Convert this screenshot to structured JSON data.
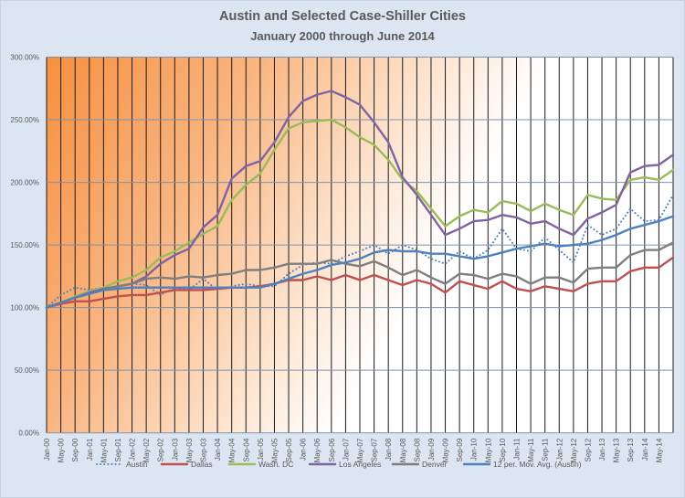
{
  "chart_data": {
    "type": "line",
    "title": "Austin and Selected Case-Shiller Cities",
    "subtitle": "January 2000 through June 2014",
    "xlabel": "",
    "ylabel": "",
    "ylim": [
      0,
      300
    ],
    "y_ticks": [
      "0.00%",
      "50.00%",
      "100.00%",
      "150.00%",
      "200.00%",
      "250.00%",
      "300.00%"
    ],
    "x_ticks": [
      "Jan-00",
      "May-00",
      "Sep-00",
      "Jan-01",
      "May-01",
      "Sep-01",
      "Jan-02",
      "May-02",
      "Sep-02",
      "Jan-03",
      "May-03",
      "Sep-03",
      "Jan-04",
      "May-04",
      "Sep-04",
      "Jan-05",
      "May-05",
      "Sep-05",
      "Jan-06",
      "May-06",
      "Sep-06",
      "Jan-07",
      "May-07",
      "Sep-07",
      "Jan-08",
      "May-08",
      "Sep-08",
      "Jan-09",
      "May-09",
      "Sep-09",
      "Jan-10",
      "May-10",
      "Sep-10",
      "Jan-11",
      "May-11",
      "Sep-11",
      "Jan-12",
      "May-12",
      "Sep-12",
      "Jan-13",
      "May-13",
      "Sep-13",
      "Jan-14",
      "May-14"
    ],
    "grid": "horizontal and vertical",
    "legend_position": "bottom",
    "background": {
      "plot_gradient_from": "#f79040",
      "plot_gradient_to": "#ffffff",
      "chart": "#dce6f2"
    },
    "series": [
      {
        "name": "Austin",
        "color": "#4f81bd",
        "style": "dotted",
        "values": [
          100,
          110,
          116,
          114,
          116,
          116,
          119,
          118,
          110,
          116,
          114,
          123,
          114,
          117,
          119,
          117,
          117,
          127,
          134,
          136,
          135,
          141,
          145,
          150,
          143,
          150,
          146,
          139,
          135,
          145,
          139,
          146,
          163,
          147,
          145,
          156,
          146,
          136,
          166,
          158,
          163,
          179,
          169,
          170,
          190
        ]
      },
      {
        "name": "Dallas",
        "color": "#c0504d",
        "style": "solid",
        "values": [
          100,
          103,
          105,
          105,
          107,
          109,
          110,
          110,
          112,
          114,
          114,
          114,
          115,
          116,
          116,
          117,
          119,
          122,
          122,
          125,
          122,
          126,
          122,
          126,
          122,
          118,
          122,
          119,
          112,
          121,
          118,
          115,
          121,
          115,
          113,
          117,
          115,
          113,
          119,
          121,
          121,
          129,
          132,
          132,
          140
        ]
      },
      {
        "name": "Wash. DC",
        "color": "#9bbb59",
        "style": "solid",
        "values": [
          100,
          104,
          109,
          113,
          116,
          121,
          124,
          130,
          140,
          145,
          152,
          159,
          165,
          186,
          198,
          207,
          226,
          243,
          248,
          249,
          250,
          244,
          236,
          230,
          218,
          202,
          193,
          179,
          165,
          173,
          178,
          176,
          185,
          183,
          177,
          183,
          178,
          174,
          190,
          187,
          186,
          202,
          204,
          202,
          210
        ]
      },
      {
        "name": "Los Angeles",
        "color": "#8064a2",
        "style": "solid",
        "values": [
          100,
          104,
          108,
          112,
          115,
          117,
          119,
          125,
          135,
          142,
          147,
          164,
          174,
          203,
          213,
          217,
          232,
          252,
          265,
          270,
          273,
          268,
          262,
          248,
          232,
          204,
          190,
          174,
          158,
          163,
          169,
          170,
          174,
          172,
          167,
          169,
          163,
          158,
          171,
          176,
          182,
          208,
          213,
          214,
          222
        ]
      },
      {
        "name": "Denver",
        "color": "#7f7f7f",
        "style": "solid",
        "values": [
          100,
          104,
          108,
          111,
          114,
          117,
          119,
          123,
          124,
          123,
          125,
          124,
          126,
          127,
          130,
          130,
          132,
          135,
          135,
          135,
          138,
          135,
          133,
          137,
          132,
          126,
          130,
          124,
          119,
          127,
          126,
          123,
          127,
          125,
          119,
          124,
          124,
          120,
          131,
          132,
          132,
          142,
          146,
          146,
          152
        ]
      },
      {
        "name": "12 per. Mov. Avg. (Austin)",
        "color": "#4f81bd",
        "style": "solid",
        "values": [
          100,
          104,
          108,
          111,
          114,
          115,
          116,
          116,
          116,
          116,
          116,
          116,
          116,
          116,
          116,
          116,
          119,
          123,
          127,
          130,
          134,
          136,
          139,
          144,
          146,
          145,
          145,
          143,
          143,
          141,
          139,
          141,
          144,
          147,
          149,
          151,
          149,
          150,
          151,
          154,
          158,
          163,
          166,
          169,
          173
        ]
      }
    ]
  }
}
